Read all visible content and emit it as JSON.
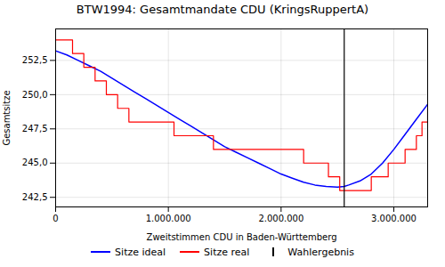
{
  "chart_data": {
    "type": "line",
    "title": "BTW1994: Gesamtmandate CDU (KringsRuppertA)",
    "xlabel": "Zweitstimmen CDU in Baden-Württemberg",
    "ylabel": "Gesamtsitze",
    "xlim": [
      0,
      3300000
    ],
    "ylim": [
      241.8,
      254.8
    ],
    "xticks": [
      0,
      {
        "value": 1000000,
        "label": "1.000.000"
      },
      {
        "value": 2000000,
        "label": "2.000.000"
      },
      {
        "value": 3000000,
        "label": "3.000.000"
      }
    ],
    "yticks": [
      {
        "value": 242.5,
        "label": "242,5"
      },
      {
        "value": 245.0,
        "label": "245,0"
      },
      {
        "value": 247.5,
        "label": "247,5"
      },
      {
        "value": 250.0,
        "label": "250,0"
      },
      {
        "value": 252.5,
        "label": "252,5"
      }
    ],
    "grid": true,
    "legend": "bottom",
    "series": [
      {
        "name": "Sitze ideal",
        "type": "line",
        "color": "blue",
        "x": [
          0,
          100000,
          200000,
          300000,
          400000,
          500000,
          600000,
          700000,
          800000,
          900000,
          1000000,
          1100000,
          1200000,
          1300000,
          1400000,
          1500000,
          1600000,
          1700000,
          1800000,
          1900000,
          2000000,
          2100000,
          2200000,
          2300000,
          2400000,
          2500000,
          2560000,
          2600000,
          2700000,
          2800000,
          2900000,
          3000000,
          3100000,
          3200000,
          3300000
        ],
        "values": [
          253.2,
          252.9,
          252.5,
          252.1,
          251.7,
          251.2,
          250.7,
          250.2,
          249.7,
          249.2,
          248.7,
          248.2,
          247.7,
          247.2,
          246.7,
          246.2,
          245.8,
          245.4,
          245.0,
          244.6,
          244.2,
          243.9,
          243.6,
          243.4,
          243.3,
          243.25,
          243.3,
          243.4,
          243.7,
          244.2,
          245.0,
          246.0,
          247.1,
          248.2,
          249.3
        ]
      },
      {
        "name": "Sitze real",
        "type": "step",
        "color": "red",
        "x": [
          0,
          50000,
          150000,
          250000,
          350000,
          450000,
          550000,
          650000,
          750000,
          900000,
          1050000,
          1200000,
          1400000,
          1600000,
          1800000,
          2000000,
          2100000,
          2200000,
          2300000,
          2380000,
          2420000,
          2480000,
          2520000,
          2540000,
          2560000,
          2580000,
          2600000,
          2650000,
          2700000,
          2750000,
          2800000,
          2850000,
          2950000,
          3050000,
          3100000,
          3150000,
          3200000,
          3250000,
          3300000
        ],
        "values": [
          254,
          254,
          253,
          252,
          251,
          250,
          249,
          248,
          248,
          248,
          247,
          247,
          246,
          246,
          246,
          246,
          246,
          245,
          245,
          245,
          244,
          244,
          243,
          243,
          243,
          243,
          243,
          243,
          243,
          243,
          244,
          244,
          245,
          245,
          246,
          246,
          247,
          248,
          249
        ]
      },
      {
        "name": "Wahlergebnis",
        "type": "vline",
        "color": "black",
        "x": [
          2560000
        ]
      }
    ]
  }
}
